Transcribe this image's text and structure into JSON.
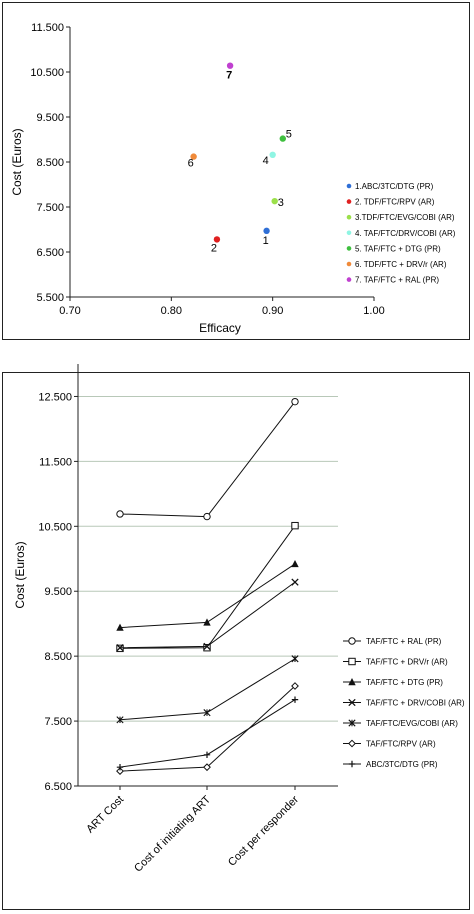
{
  "chart_data": [
    {
      "type": "scatter",
      "xlabel": "Efficacy",
      "ylabel": "Cost (Euros)",
      "xlim": [
        0.7,
        1.0
      ],
      "ylim": [
        5.5,
        11.5
      ],
      "x_ticks": [
        "0.70",
        "0.80",
        "0.90",
        "1.00"
      ],
      "y_ticks": [
        "5.500",
        "6.500",
        "7.500",
        "8.500",
        "9.500",
        "10.500",
        "11.500"
      ],
      "legend_position": "right",
      "points": [
        {
          "label": "1",
          "name": "1.ABC/3TC/DTG (PR)",
          "x": 0.894,
          "y": 6.97,
          "color": "#2f6fd6"
        },
        {
          "label": "2",
          "name": "2. TDF/FTC/RPV (AR)",
          "x": 0.845,
          "y": 6.78,
          "color": "#e02020"
        },
        {
          "label": "3",
          "name": "3.TDF/FTC/EVG/COBI (AR)",
          "x": 0.902,
          "y": 7.63,
          "color": "#9be04a"
        },
        {
          "label": "4",
          "name": "4. TAF/FTC/DRV/COBI (AR)",
          "x": 0.9,
          "y": 8.66,
          "color": "#8ff5e3"
        },
        {
          "label": "5",
          "name": "5. TAF/FTC + DTG (PR)",
          "x": 0.91,
          "y": 9.02,
          "color": "#3fbf3f"
        },
        {
          "label": "6",
          "name": "6. TDF/FTC + DRV/r (AR)",
          "x": 0.822,
          "y": 8.62,
          "color": "#f08a3a"
        },
        {
          "label": "7",
          "name": "7. TAF/FTC + RAL (PR)",
          "x": 0.858,
          "y": 10.64,
          "color": "#c040d0"
        }
      ]
    },
    {
      "type": "line",
      "ylabel": "Cost (Euros)",
      "ylim": [
        6.5,
        13.0
      ],
      "y_ticks": [
        "6.500",
        "7.500",
        "8.500",
        "9.500",
        "10.500",
        "11.500",
        "12.500"
      ],
      "categories": [
        "ART Cost",
        "Cost of initiating ART",
        "Cost per responder"
      ],
      "grid": true,
      "legend_position": "right",
      "series": [
        {
          "name": "TAF/FTC + RAL (PR)",
          "marker": "circle",
          "values": [
            10.69,
            10.65,
            12.42
          ]
        },
        {
          "name": "TAF/FTC + DRV/r (AR)",
          "marker": "square",
          "values": [
            8.62,
            8.63,
            10.51
          ]
        },
        {
          "name": "TAF/FTC + DTG (PR)",
          "marker": "triangle",
          "values": [
            8.94,
            9.02,
            9.92
          ]
        },
        {
          "name": "TAF/FTC + DRV/COBI (AR)",
          "marker": "x",
          "values": [
            8.63,
            8.65,
            9.64
          ]
        },
        {
          "name": "TAF/FTC/EVG/COBI (AR)",
          "marker": "star",
          "values": [
            7.52,
            7.63,
            8.46
          ]
        },
        {
          "name": "TAF/FTC/RPV (AR)",
          "marker": "diamond",
          "values": [
            6.73,
            6.79,
            8.04
          ]
        },
        {
          "name": "ABC/3TC/DTG (PR)",
          "marker": "plus",
          "values": [
            6.79,
            6.98,
            7.83
          ]
        }
      ]
    }
  ]
}
